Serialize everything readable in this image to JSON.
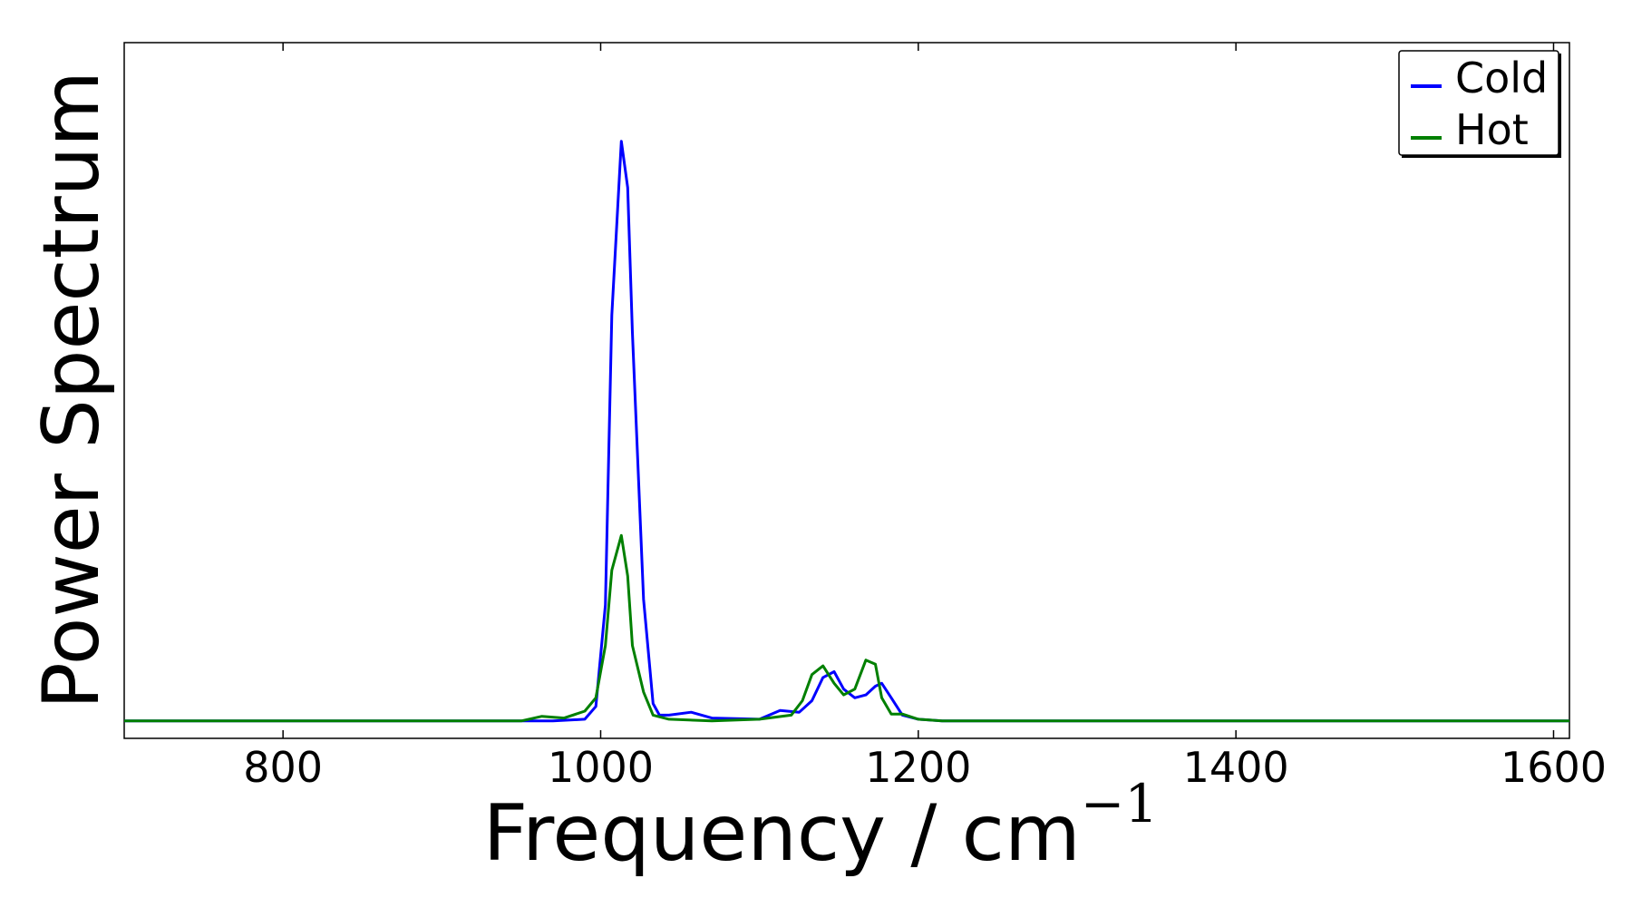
{
  "chart_data": {
    "type": "line",
    "xlabel_main": "Frequency / cm",
    "xlabel_sup": "−1",
    "ylabel": "Power Spectrum",
    "xlim": [
      700,
      1610
    ],
    "ylim": [
      -0.03,
      1.17
    ],
    "x_ticks": [
      800,
      1000,
      1200,
      1400,
      1600
    ],
    "x_tick_labels": [
      "800",
      "1000",
      "1200",
      "1400",
      "1600"
    ],
    "grid": false,
    "legend_position": "top-right",
    "series": [
      {
        "name": "Cold",
        "color": "#0000ff",
        "x": [
          700,
          950,
          970,
          990,
          997,
          1003,
          1007,
          1013,
          1017,
          1020,
          1027,
          1033,
          1037,
          1043,
          1057,
          1070,
          1100,
          1113,
          1125,
          1133,
          1140,
          1147,
          1153,
          1160,
          1167,
          1173,
          1177,
          1183,
          1190,
          1200,
          1215,
          1610
        ],
        "y": [
          0.0,
          0.0,
          0.0,
          0.003,
          0.025,
          0.2,
          0.7,
          1.0,
          0.92,
          0.67,
          0.21,
          0.03,
          0.01,
          0.01,
          0.015,
          0.005,
          0.003,
          0.018,
          0.015,
          0.035,
          0.075,
          0.085,
          0.055,
          0.04,
          0.045,
          0.06,
          0.065,
          0.04,
          0.01,
          0.003,
          0.0,
          0.0
        ]
      },
      {
        "name": "Hot",
        "color": "#008000",
        "x": [
          700,
          950,
          963,
          977,
          990,
          997,
          1003,
          1007,
          1013,
          1017,
          1020,
          1027,
          1033,
          1043,
          1070,
          1100,
          1120,
          1127,
          1133,
          1140,
          1147,
          1153,
          1160,
          1167,
          1173,
          1177,
          1183,
          1190,
          1200,
          1215,
          1610
        ],
        "y": [
          0.0,
          0.0,
          0.008,
          0.005,
          0.017,
          0.04,
          0.13,
          0.26,
          0.32,
          0.25,
          0.13,
          0.05,
          0.01,
          0.003,
          0.0,
          0.003,
          0.01,
          0.035,
          0.08,
          0.095,
          0.065,
          0.045,
          0.055,
          0.105,
          0.098,
          0.04,
          0.012,
          0.012,
          0.003,
          0.0,
          0.0
        ]
      }
    ]
  }
}
